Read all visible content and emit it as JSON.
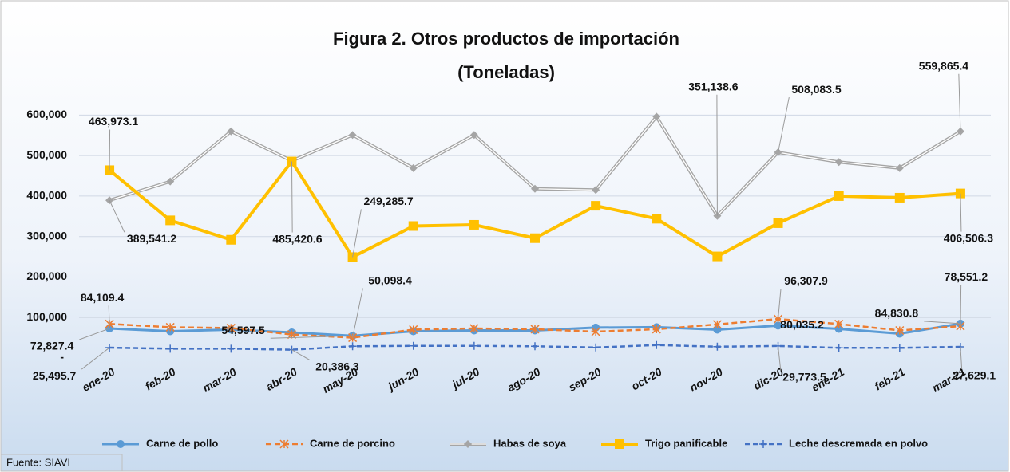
{
  "chart_data": {
    "type": "line",
    "title": "Figura 2. Otros productos de importación",
    "subtitle": "(Toneladas)",
    "source": "Fuente: SIAVI",
    "categories": [
      "ene-20",
      "feb-20",
      "mar-20",
      "abr-20",
      "may-20",
      "jun-20",
      "jul-20",
      "ago-20",
      "sep-20",
      "oct-20",
      "nov-20",
      "dic-20",
      "ene-21",
      "feb-21",
      "mar-21"
    ],
    "ylim": [
      0,
      650000
    ],
    "yticks": [
      {
        "value": 0,
        "label": "-"
      },
      {
        "value": 100000,
        "label": "100,000"
      },
      {
        "value": 200000,
        "label": "200,000"
      },
      {
        "value": 300000,
        "label": "300,000"
      },
      {
        "value": 400000,
        "label": "400,000"
      },
      {
        "value": 500000,
        "label": "500,000"
      },
      {
        "value": 600000,
        "label": "600,000"
      }
    ],
    "grid": true,
    "legend": "bottom",
    "series": [
      {
        "name": "Carne de pollo",
        "color": "#5b9bd5",
        "values": [
          72827.4,
          66000,
          70000,
          63000,
          54597.5,
          66000,
          68000,
          68000,
          75000,
          76000,
          70000,
          80035.2,
          72000,
          60000,
          84830.8
        ],
        "value_labels": [
          "72,827.4",
          null,
          null,
          null,
          "54,597.5",
          null,
          null,
          null,
          null,
          null,
          null,
          "80,035.2",
          null,
          null,
          "84,830.8"
        ]
      },
      {
        "name": "Carne de porcino",
        "color": "#ed7d31",
        "values": [
          84109.4,
          76000,
          74000,
          58000,
          50098.4,
          70000,
          73000,
          71000,
          65000,
          71000,
          83000,
          96307.9,
          84000,
          68000,
          78551.2
        ],
        "value_labels": [
          "84,109.4",
          null,
          null,
          null,
          "50,098.4",
          null,
          null,
          null,
          null,
          null,
          null,
          "96,307.9",
          null,
          null,
          "78,551.2"
        ]
      },
      {
        "name": "Habas de soya",
        "color": "#a5a5a5",
        "values": [
          389541.2,
          436000,
          560000,
          487000,
          551000,
          469000,
          551000,
          418000,
          415000,
          596000,
          351138.6,
          508083.5,
          484000,
          469000,
          559865.4
        ],
        "value_labels": [
          "389,541.2",
          null,
          null,
          null,
          null,
          null,
          null,
          null,
          null,
          null,
          "351,138.6",
          "508,083.5",
          null,
          null,
          "559,865.4"
        ]
      },
      {
        "name": "Trigo panificable",
        "color": "#ffc000",
        "values": [
          463973.1,
          340000,
          292000,
          485420.6,
          249285.7,
          326000,
          329000,
          296000,
          376000,
          344000,
          251000,
          333000,
          400000,
          396000,
          406506.3
        ],
        "value_labels": [
          "463,973.1",
          null,
          null,
          "485,420.6",
          "249,285.7",
          null,
          null,
          null,
          null,
          null,
          null,
          null,
          null,
          null,
          "406,506.3"
        ]
      },
      {
        "name": "Leche descremada en polvo",
        "color": "#4472c4",
        "values": [
          25495.7,
          23000,
          23000,
          20386.3,
          29000,
          30000,
          30000,
          29000,
          26000,
          32000,
          28000,
          29773.5,
          25000,
          25000,
          27629.1
        ],
        "value_labels": [
          "25,495.7",
          null,
          null,
          "20,386.3",
          null,
          null,
          null,
          null,
          null,
          null,
          null,
          "29,773.5",
          null,
          null,
          "27,629.1"
        ]
      }
    ]
  }
}
